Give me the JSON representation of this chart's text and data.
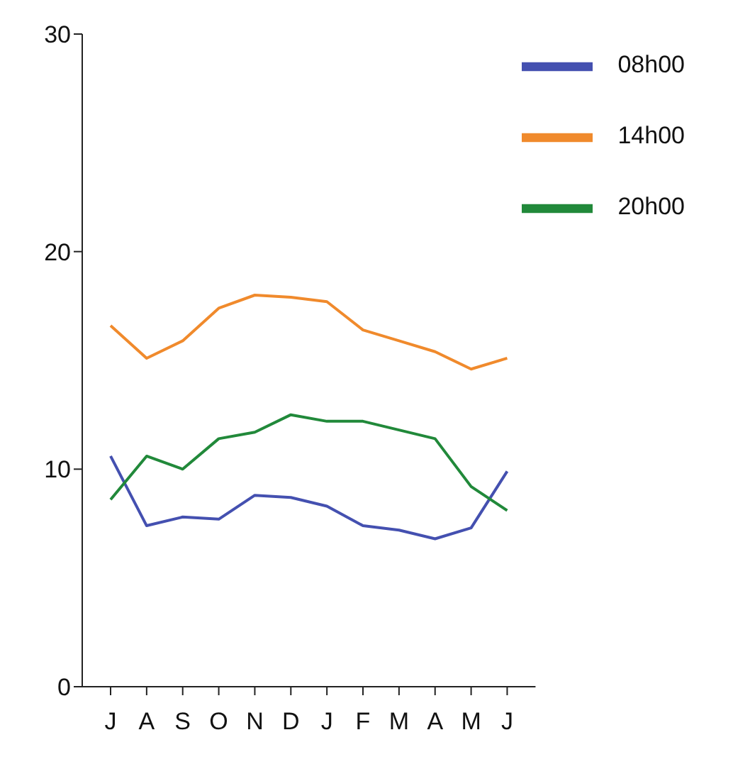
{
  "chart_data": {
    "type": "line",
    "categories": [
      "J",
      "A",
      "S",
      "O",
      "N",
      "D",
      "J",
      "F",
      "M",
      "A",
      "M",
      "J"
    ],
    "series": [
      {
        "name": "08h00",
        "color": "#4450b0",
        "values": [
          10.6,
          7.4,
          7.8,
          7.7,
          8.8,
          8.7,
          8.3,
          7.4,
          7.2,
          6.8,
          7.3,
          9.9
        ]
      },
      {
        "name": "14h00",
        "color": "#f08a2c",
        "values": [
          16.6,
          15.1,
          15.9,
          17.4,
          18.0,
          17.9,
          17.7,
          16.4,
          15.9,
          15.4,
          14.6,
          15.1
        ]
      },
      {
        "name": "20h00",
        "color": "#21893a",
        "values": [
          8.6,
          10.6,
          10.0,
          11.4,
          11.7,
          12.5,
          12.2,
          12.2,
          11.8,
          11.4,
          9.2,
          8.1
        ]
      }
    ],
    "ylim": [
      0,
      30
    ],
    "yticks": [
      0,
      10,
      20,
      30
    ],
    "grid": false,
    "legend": "top right",
    "marker": "none",
    "line_style": "solid"
  }
}
